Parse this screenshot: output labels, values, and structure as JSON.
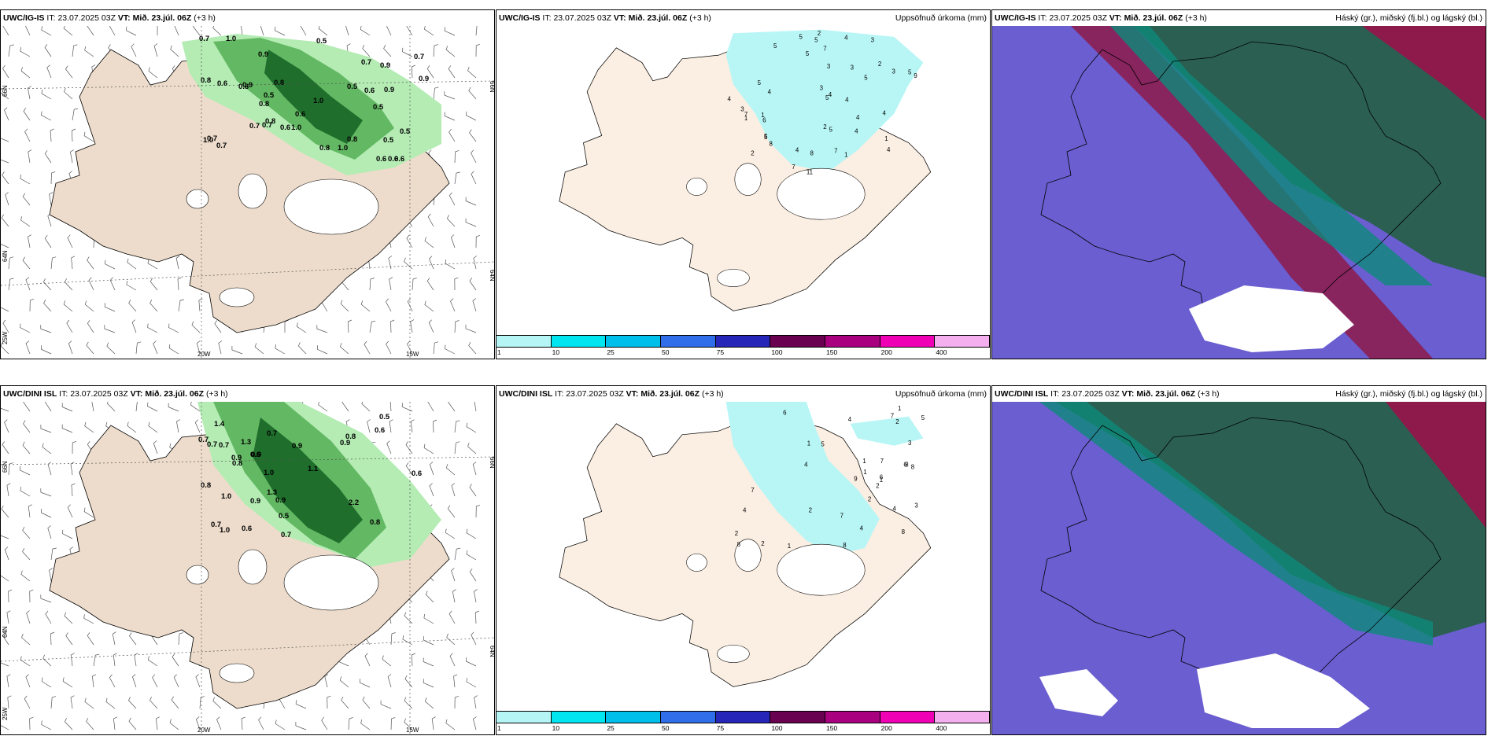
{
  "panels": [
    {
      "model": "UWC/IG-IS",
      "it_label": "IT:",
      "it": "23.07.2025 03Z",
      "vt_label": "VT:",
      "vt": "Mið. 23.júl. 06Z",
      "lead": "(+3 h)",
      "right_title": ""
    },
    {
      "model": "UWC/IG-IS",
      "it_label": "IT:",
      "it": "23.07.2025 03Z",
      "vt_label": "VT:",
      "vt": "Mið. 23.júl. 06Z",
      "lead": "(+3 h)",
      "right_title": "Uppsöfnuð úrkoma (mm)"
    },
    {
      "model": "UWC/IG-IS",
      "it_label": "IT:",
      "it": "23.07.2025 03Z",
      "vt_label": "VT:",
      "vt": "Mið. 23.júl. 06Z",
      "lead": "(+3 h)",
      "right_title": "Háský (gr.), miðský (fj.bl.) og lágský (bl.)"
    },
    {
      "model": "UWC/DINI ISL",
      "it_label": "IT:",
      "it": "23.07.2025 03Z",
      "vt_label": "VT:",
      "vt": "Mið. 23.júl. 06Z",
      "lead": "(+3 h)",
      "right_title": ""
    },
    {
      "model": "UWC/DINI ISL",
      "it_label": "IT:",
      "it": "23.07.2025 03Z",
      "vt_label": "VT:",
      "vt": "Mið. 23.júl. 06Z",
      "lead": "(+3 h)",
      "right_title": "Uppsöfnuð úrkoma (mm)"
    },
    {
      "model": "UWC/DINI ISL",
      "it_label": "IT:",
      "it": "23.07.2025 03Z",
      "vt_label": "VT:",
      "vt": "Mið. 23.júl. 06Z",
      "lead": "(+3 h)",
      "right_title": "Háský (gr.), miðský (fj.bl.) og lágský (bl.)"
    }
  ],
  "axis_labels": {
    "lon_20": "20W",
    "lon_15": "15W",
    "lat_66": "66N",
    "lat_64": "64N",
    "lon_25": "25W"
  },
  "colorbar": {
    "labels": [
      "1",
      "10",
      "25",
      "50",
      "75",
      "100",
      "150",
      "200",
      "400"
    ],
    "colors": [
      "#b6f5f5",
      "#00e5f0",
      "#00bfea",
      "#2f6ee8",
      "#2626b8",
      "#6a0050",
      "#a8007e",
      "#f000b4",
      "#f4b0ee"
    ]
  },
  "colors": {
    "land": "#eddccb",
    "land_light": "#fbeee2",
    "precip_light": "#b4ecb4",
    "precip_mid": "#63b863",
    "precip_dark": "#1f6e2c",
    "accum": "#b8f6f6",
    "cloud_bg": "#6a5ed0",
    "cloud_high": "#2b5f52",
    "cloud_mid": "#0e8a7a",
    "cloud_low": "#8d1a4a"
  },
  "values": {
    "top_left": [
      "0.6",
      "0.8",
      "1.0",
      "0.5",
      "0.6",
      "0.9",
      "1.0",
      "0.8",
      "0.7",
      "0.6",
      "0.9",
      "0.5",
      "0.7",
      "0.6",
      "0.5",
      "0.8",
      "1.0",
      "0.9",
      "0.7",
      "0.8",
      "0.6",
      "0.9",
      "1.0",
      "0.7",
      "0.5",
      "0.5",
      "0.8",
      "0.7",
      "0.9",
      "1.0",
      "0.8",
      "0.6",
      "0.7",
      "0.5",
      "0.7",
      "0.8",
      "0.6"
    ],
    "top_mid": [
      "2",
      "3",
      "5",
      "2",
      "5",
      "4",
      "6",
      "5",
      "3",
      "5",
      "3",
      "2",
      "4",
      "5",
      "11",
      "5",
      "4",
      "4",
      "5",
      "7",
      "1",
      "5",
      "5",
      "4",
      "3",
      "4",
      "7",
      "4",
      "3",
      "4",
      "5",
      "8",
      "7",
      "2",
      "1",
      "1",
      "5",
      "4",
      "3",
      "4",
      "9",
      "7",
      "8",
      "1"
    ],
    "bot_left": [
      "0.5",
      "0.9",
      "0.7",
      "0.8",
      "0.9",
      "1.0",
      "0.6",
      "0.7",
      "0.5",
      "0.8",
      "1.3",
      "0.7",
      "0.9",
      "0.6",
      "1.1",
      "0.7",
      "1.4",
      "0.8",
      "0.9",
      "1.0",
      "0.9",
      "2.2",
      "0.8",
      "0.6",
      "1.0",
      "0.7",
      "0.9",
      "0.7",
      "1.3",
      "0.6"
    ],
    "bot_mid": [
      "5",
      "7",
      "1",
      "2",
      "7",
      "8",
      "1",
      "5",
      "8",
      "4",
      "7",
      "1",
      "1",
      "8",
      "8",
      "6",
      "4",
      "4",
      "4",
      "6",
      "7",
      "6",
      "3",
      "2",
      "1",
      "2",
      "2",
      "9",
      "3",
      "2",
      "4",
      "8",
      "2",
      "1"
    ]
  }
}
